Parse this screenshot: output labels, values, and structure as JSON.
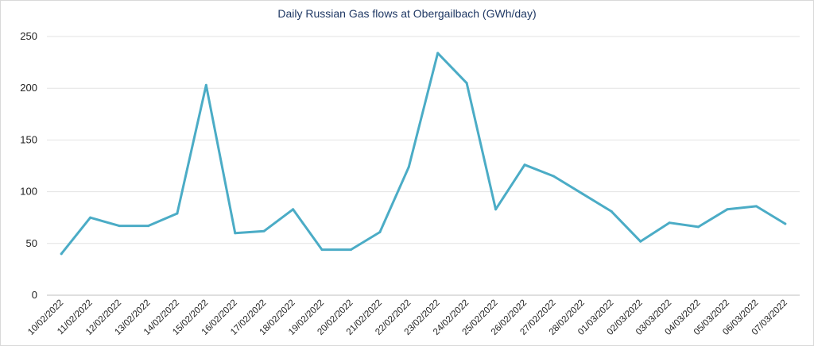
{
  "chart_data": {
    "type": "line",
    "title": "Daily Russian Gas flows at Obergailbach (GWh/day)",
    "xlabel": "",
    "ylabel": "",
    "ylim": [
      0,
      250
    ],
    "yticks": [
      0,
      50,
      100,
      150,
      200,
      250
    ],
    "grid": true,
    "line_color": "#4bacc6",
    "categories": [
      "10/02/2022",
      "11/02/2022",
      "12/02/2022",
      "13/02/2022",
      "14/02/2022",
      "15/02/2022",
      "16/02/2022",
      "17/02/2022",
      "18/02/2022",
      "19/02/2022",
      "20/02/2022",
      "21/02/2022",
      "22/02/2022",
      "23/02/2022",
      "24/02/2022",
      "25/02/2022",
      "26/02/2022",
      "27/02/2022",
      "28/02/2022",
      "01/03/2022",
      "02/03/2022",
      "03/03/2022",
      "04/03/2022",
      "05/03/2022",
      "06/03/2022",
      "07/03/2022"
    ],
    "values": [
      40,
      75,
      67,
      67,
      79,
      203,
      60,
      62,
      83,
      44,
      44,
      61,
      124,
      234,
      205,
      83,
      126,
      115,
      98,
      81,
      52,
      70,
      66,
      83,
      86,
      69
    ]
  }
}
